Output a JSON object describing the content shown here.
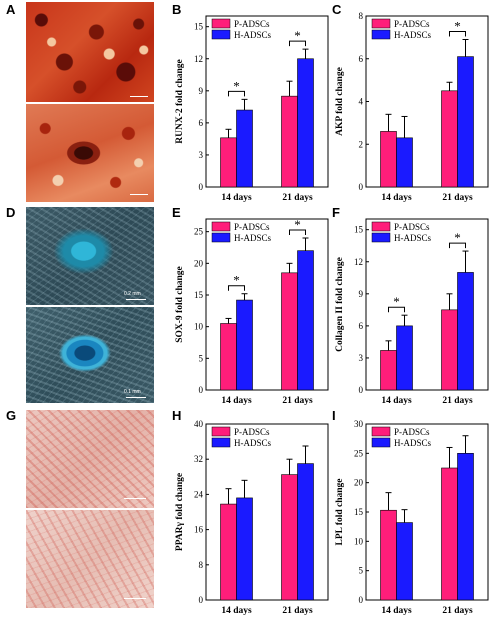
{
  "panels": {
    "A": "A",
    "B": "B",
    "C": "C",
    "D": "D",
    "E": "E",
    "F": "F",
    "G": "G",
    "H": "H",
    "I": "I"
  },
  "photos": {
    "D_top_scale": "0.2 mm",
    "D_bottom_scale": "0.1 mm"
  },
  "colors": {
    "p_adscs": "#ff1e7a",
    "h_adscs": "#1a1aff"
  },
  "legend": {
    "p": "P-ADSCs",
    "h": "H-ADSCs"
  },
  "chart_data": [
    {
      "id": "B",
      "type": "bar",
      "categories": [
        "14 days",
        "21 days"
      ],
      "series": [
        {
          "name": "P-ADSCs",
          "values": [
            4.6,
            8.5
          ],
          "errors": [
            0.8,
            1.4
          ]
        },
        {
          "name": "H-ADSCs",
          "values": [
            7.2,
            12.0
          ],
          "errors": [
            1.0,
            0.9
          ]
        }
      ],
      "ylabel": "RUNX-2 fold change",
      "ylim": [
        0,
        16
      ],
      "yticks": [
        0,
        3,
        6,
        9,
        12,
        15
      ],
      "significance": [
        true,
        true
      ],
      "legend": "top-left"
    },
    {
      "id": "C",
      "type": "bar",
      "categories": [
        "14 days",
        "21 days"
      ],
      "series": [
        {
          "name": "P-ADSCs",
          "values": [
            2.6,
            4.5
          ],
          "errors": [
            0.8,
            0.4
          ]
        },
        {
          "name": "H-ADSCs",
          "values": [
            2.3,
            6.1
          ],
          "errors": [
            1.0,
            0.8
          ]
        }
      ],
      "ylabel": "AKP fold change",
      "ylim": [
        0,
        8
      ],
      "yticks": [
        0,
        2,
        4,
        6,
        8
      ],
      "significance": [
        false,
        true
      ],
      "legend": "top-left"
    },
    {
      "id": "E",
      "type": "bar",
      "categories": [
        "14 days",
        "21 days"
      ],
      "series": [
        {
          "name": "P-ADSCs",
          "values": [
            10.5,
            18.5
          ],
          "errors": [
            0.8,
            1.5
          ]
        },
        {
          "name": "H-ADSCs",
          "values": [
            14.2,
            22.0
          ],
          "errors": [
            1.0,
            2.0
          ]
        }
      ],
      "ylabel": "SOX-9 fold change",
      "ylim": [
        0,
        27
      ],
      "yticks": [
        0,
        5,
        10,
        15,
        20,
        25
      ],
      "significance": [
        true,
        true
      ],
      "legend": "top-left"
    },
    {
      "id": "F",
      "type": "bar",
      "categories": [
        "14 days",
        "21 days"
      ],
      "series": [
        {
          "name": "P-ADSCs",
          "values": [
            3.7,
            7.5
          ],
          "errors": [
            0.9,
            1.5
          ]
        },
        {
          "name": "H-ADSCs",
          "values": [
            6.0,
            11.0
          ],
          "errors": [
            1.0,
            2.0
          ]
        }
      ],
      "ylabel": "Collagen II fold change",
      "ylim": [
        0,
        16
      ],
      "yticks": [
        0,
        3,
        6,
        9,
        12,
        15
      ],
      "significance": [
        true,
        true
      ],
      "legend": "top-left"
    },
    {
      "id": "H",
      "type": "bar",
      "categories": [
        "14 days",
        "21 days"
      ],
      "series": [
        {
          "name": "P-ADSCs",
          "values": [
            21.8,
            28.5
          ],
          "errors": [
            3.5,
            3.5
          ]
        },
        {
          "name": "H-ADSCs",
          "values": [
            23.2,
            31.0
          ],
          "errors": [
            4.0,
            4.0
          ]
        }
      ],
      "ylabel": "PPARγ fold change",
      "ylim": [
        0,
        40
      ],
      "yticks": [
        0,
        8,
        16,
        24,
        32,
        40
      ],
      "significance": [
        false,
        false
      ],
      "legend": "top-left"
    },
    {
      "id": "I",
      "type": "bar",
      "categories": [
        "14 days",
        "21 days"
      ],
      "series": [
        {
          "name": "P-ADSCs",
          "values": [
            15.3,
            22.5
          ],
          "errors": [
            3.0,
            3.5
          ]
        },
        {
          "name": "H-ADSCs",
          "values": [
            13.2,
            25.0
          ],
          "errors": [
            2.2,
            3.0
          ]
        }
      ],
      "ylabel": "LPL fold change",
      "ylim": [
        0,
        30
      ],
      "yticks": [
        0,
        5,
        10,
        15,
        20,
        25,
        30
      ],
      "significance": [
        false,
        false
      ],
      "legend": "top-left"
    }
  ]
}
